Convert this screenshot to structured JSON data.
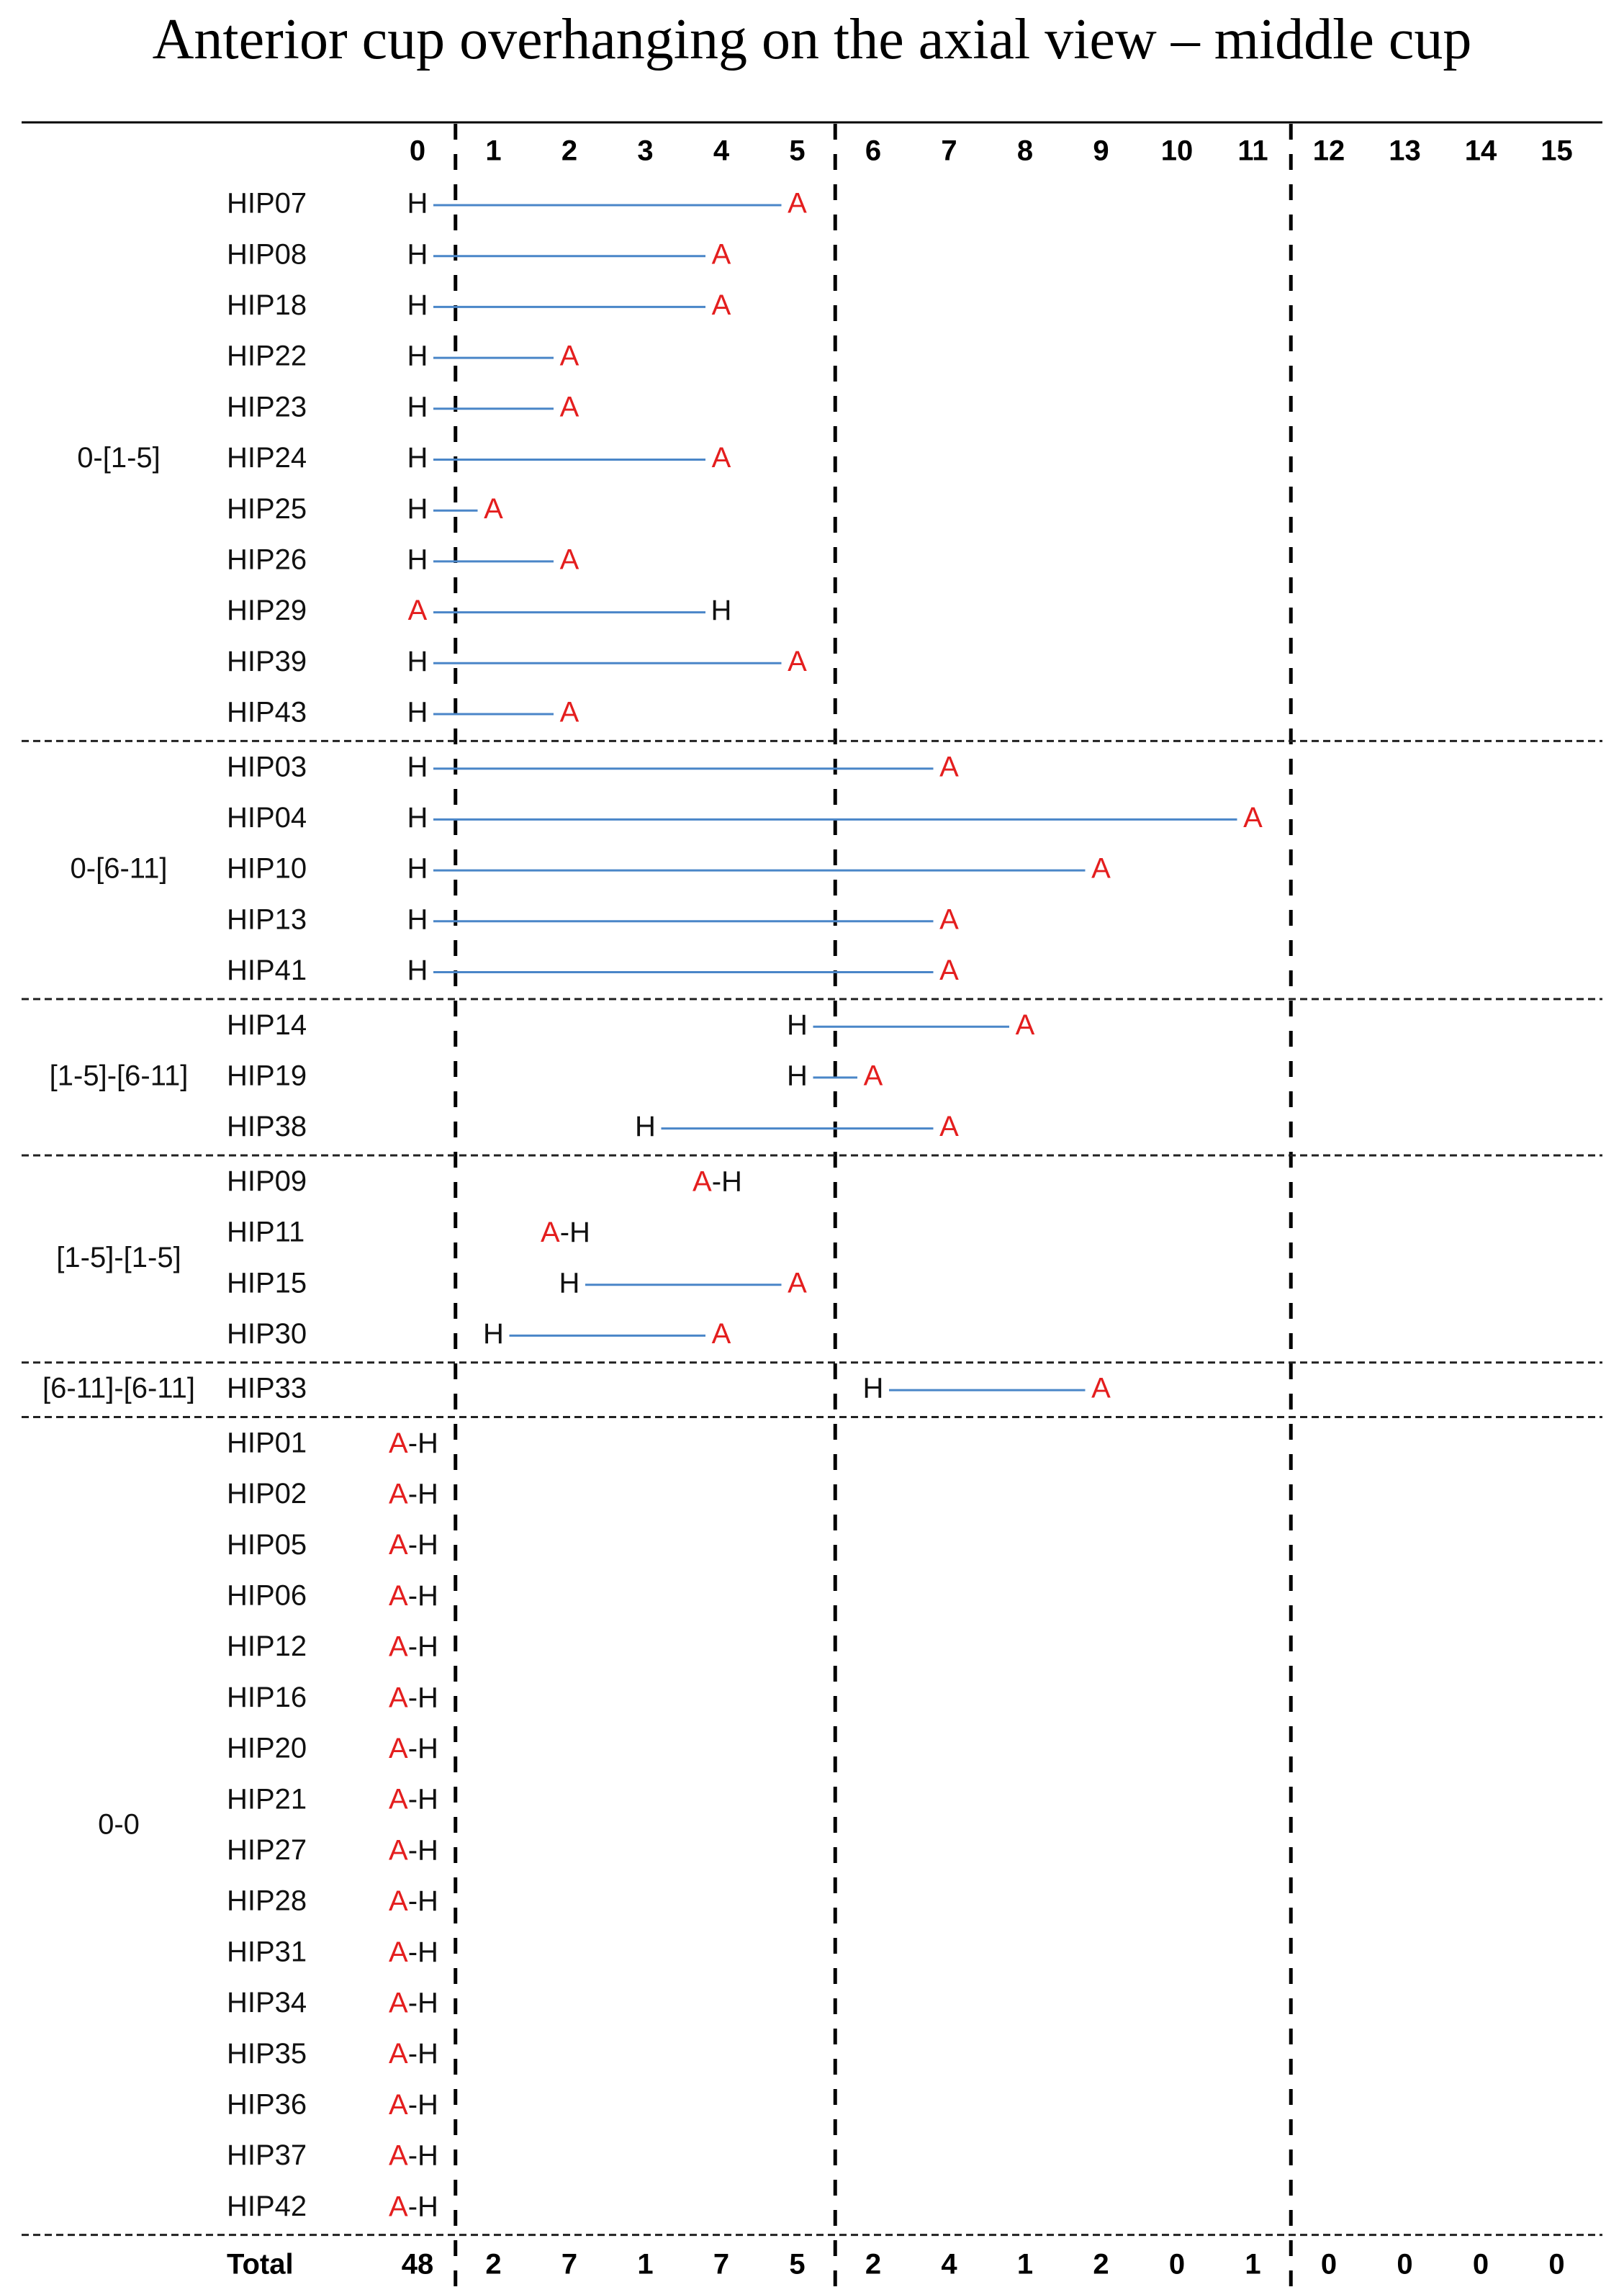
{
  "chart_data": {
    "type": "range-dot",
    "title": "Anterior cup overhanging on the axial view – middle cup",
    "x_ticks": [
      "0",
      "1",
      "2",
      "3",
      "4",
      "5",
      "6",
      "7",
      "8",
      "9",
      "10",
      "11",
      "12",
      "13",
      "14",
      "15"
    ],
    "xlim": [
      0,
      15
    ],
    "dividers_after": [
      0,
      5,
      11
    ],
    "marker_labels": {
      "H": "H",
      "A": "A",
      "AH": "A-H",
      "dash": "-"
    },
    "colors": {
      "line": "#4a86c8",
      "A": "#e41e1e",
      "H": "#111111",
      "text": "#111111"
    },
    "groups": [
      {
        "label": "0-[1-5]",
        "rows": [
          {
            "id": "HIP07",
            "H": 0,
            "A": 5
          },
          {
            "id": "HIP08",
            "H": 0,
            "A": 4
          },
          {
            "id": "HIP18",
            "H": 0,
            "A": 4
          },
          {
            "id": "HIP22",
            "H": 0,
            "A": 2
          },
          {
            "id": "HIP23",
            "H": 0,
            "A": 2
          },
          {
            "id": "HIP24",
            "H": 0,
            "A": 4
          },
          {
            "id": "HIP25",
            "H": 0,
            "A": 1
          },
          {
            "id": "HIP26",
            "H": 0,
            "A": 2
          },
          {
            "id": "HIP29",
            "H": 4,
            "A": 0
          },
          {
            "id": "HIP39",
            "H": 0,
            "A": 5
          },
          {
            "id": "HIP43",
            "H": 0,
            "A": 2
          }
        ]
      },
      {
        "label": "0-[6-11]",
        "rows": [
          {
            "id": "HIP03",
            "H": 0,
            "A": 7
          },
          {
            "id": "HIP04",
            "H": 0,
            "A": 11
          },
          {
            "id": "HIP10",
            "H": 0,
            "A": 9
          },
          {
            "id": "HIP13",
            "H": 0,
            "A": 7
          },
          {
            "id": "HIP41",
            "H": 0,
            "A": 7
          }
        ]
      },
      {
        "label": "[1-5]-[6-11]",
        "rows": [
          {
            "id": "HIP14",
            "H": 5,
            "A": 8
          },
          {
            "id": "HIP19",
            "H": 5,
            "A": 6
          },
          {
            "id": "HIP38",
            "H": 3,
            "A": 7
          }
        ]
      },
      {
        "label": "[1-5]-[1-5]",
        "rows": [
          {
            "id": "HIP09",
            "H": 4,
            "A": 4
          },
          {
            "id": "HIP11",
            "H": 2,
            "A": 2
          },
          {
            "id": "HIP15",
            "H": 2,
            "A": 5
          },
          {
            "id": "HIP30",
            "H": 1,
            "A": 4
          }
        ]
      },
      {
        "label": "[6-11]-[6-11]",
        "rows": [
          {
            "id": "HIP33",
            "H": 6,
            "A": 9
          }
        ]
      },
      {
        "label": "0-0",
        "rows": [
          {
            "id": "HIP01",
            "H": 0,
            "A": 0
          },
          {
            "id": "HIP02",
            "H": 0,
            "A": 0
          },
          {
            "id": "HIP05",
            "H": 0,
            "A": 0
          },
          {
            "id": "HIP06",
            "H": 0,
            "A": 0
          },
          {
            "id": "HIP12",
            "H": 0,
            "A": 0
          },
          {
            "id": "HIP16",
            "H": 0,
            "A": 0
          },
          {
            "id": "HIP20",
            "H": 0,
            "A": 0
          },
          {
            "id": "HIP21",
            "H": 0,
            "A": 0
          },
          {
            "id": "HIP27",
            "H": 0,
            "A": 0
          },
          {
            "id": "HIP28",
            "H": 0,
            "A": 0
          },
          {
            "id": "HIP31",
            "H": 0,
            "A": 0
          },
          {
            "id": "HIP34",
            "H": 0,
            "A": 0
          },
          {
            "id": "HIP35",
            "H": 0,
            "A": 0
          },
          {
            "id": "HIP36",
            "H": 0,
            "A": 0
          },
          {
            "id": "HIP37",
            "H": 0,
            "A": 0
          },
          {
            "id": "HIP42",
            "H": 0,
            "A": 0
          }
        ]
      }
    ],
    "totals_label": "Total",
    "totals": [
      "48",
      "2",
      "7",
      "1",
      "7",
      "5",
      "2",
      "4",
      "1",
      "2",
      "0",
      "1",
      "0",
      "0",
      "0",
      "0"
    ]
  }
}
